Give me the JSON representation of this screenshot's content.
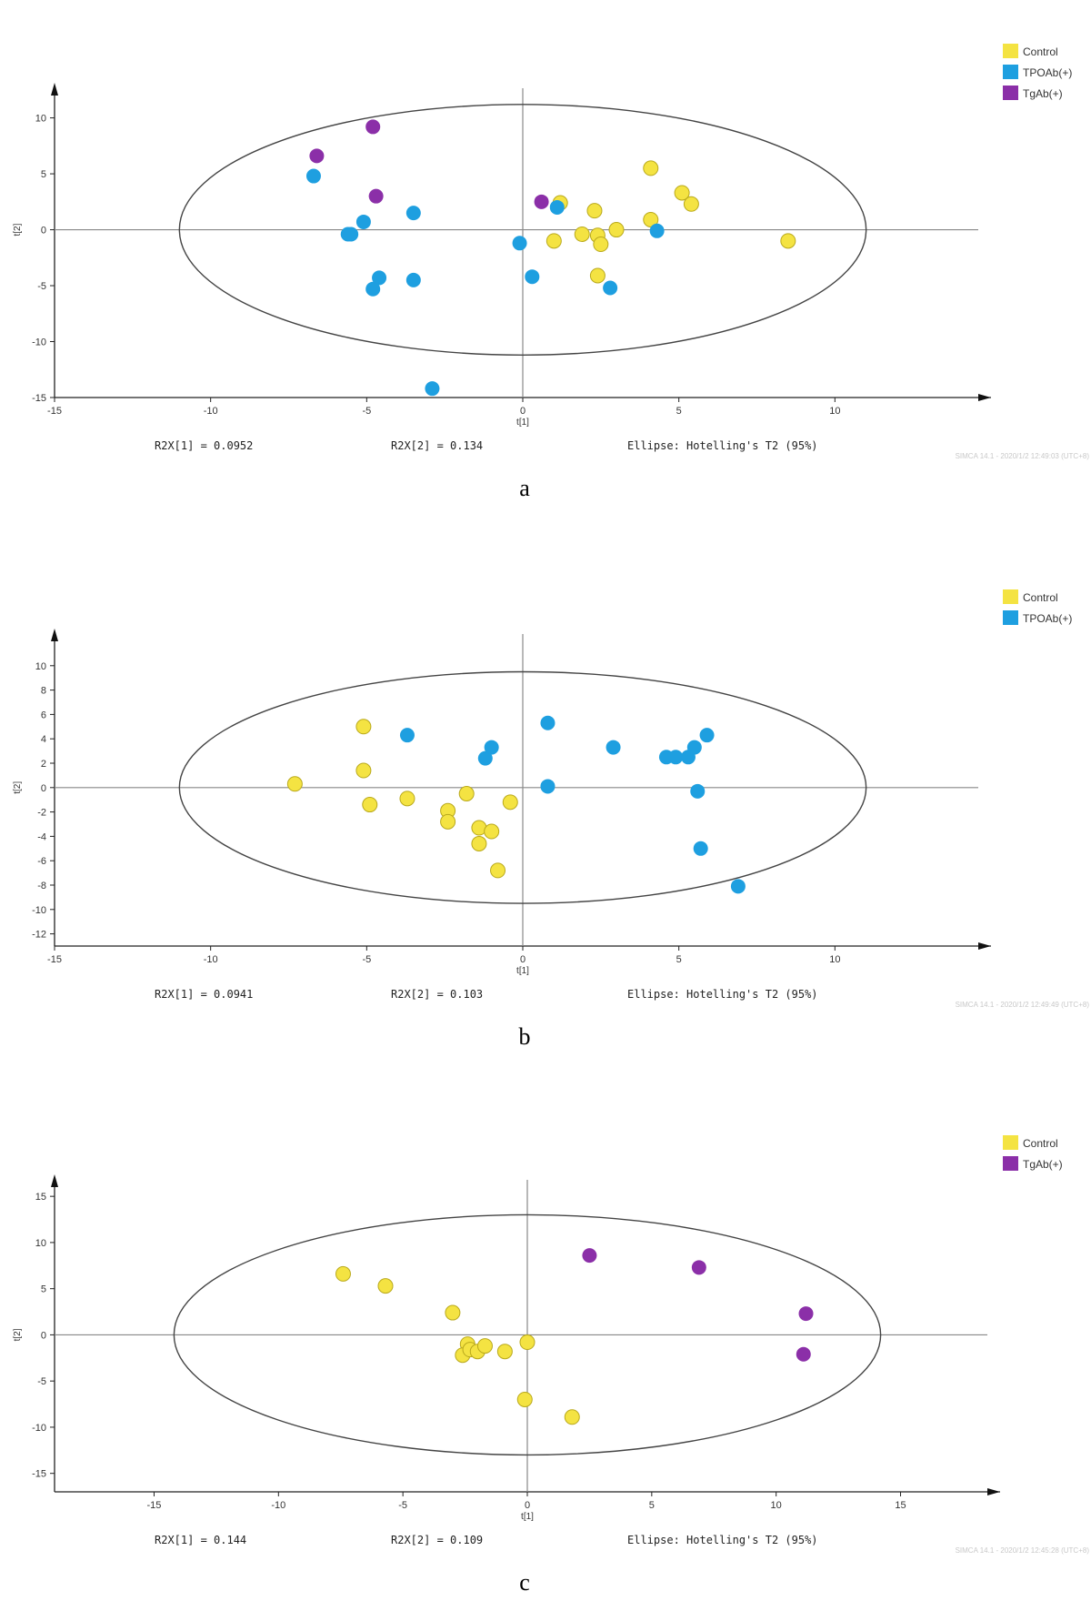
{
  "colors": {
    "Control": "#f4e342",
    "TPOAb(+)": "#1e9fe0",
    "TgAb(+)": "#8b2fa8"
  },
  "chart_data": [
    {
      "type": "scatter",
      "panel_label": "a",
      "xlabel": "t[1]",
      "ylabel": "t[2]",
      "xlim": [
        -15,
        15
      ],
      "ylim": [
        -15,
        12
      ],
      "xticks": [
        -15,
        -10,
        -5,
        0,
        5,
        10
      ],
      "yticks": [
        -15,
        -10,
        -5,
        0,
        5,
        10
      ],
      "grid": false,
      "legend_position": "top-right",
      "ellipse": {
        "rx": 11,
        "ry": 11.2
      },
      "stats": [
        "R2X[1] = 0.0952",
        "R2X[2] = 0.134",
        "Ellipse: Hotelling's T2 (95%)"
      ],
      "watermark": "SIMCA 14.1 - 2020/1/2 12:49:03 (UTC+8)",
      "series": [
        {
          "name": "Control",
          "points": [
            [
              1.2,
              2.4
            ],
            [
              2.3,
              1.7
            ],
            [
              4.1,
              5.5
            ],
            [
              5.1,
              3.3
            ],
            [
              5.4,
              2.3
            ],
            [
              4.1,
              0.9
            ],
            [
              1.0,
              -1.0
            ],
            [
              1.9,
              -0.4
            ],
            [
              2.4,
              -0.5
            ],
            [
              2.5,
              -1.3
            ],
            [
              3.0,
              0.0
            ],
            [
              2.4,
              -4.1
            ],
            [
              8.5,
              -1.0
            ]
          ]
        },
        {
          "name": "TPOAb(+)",
          "points": [
            [
              -6.7,
              4.8
            ],
            [
              -5.6,
              -0.4
            ],
            [
              -5.5,
              -0.4
            ],
            [
              -5.1,
              0.7
            ],
            [
              -3.5,
              1.5
            ],
            [
              -4.6,
              -4.3
            ],
            [
              -4.8,
              -5.3
            ],
            [
              -3.5,
              -4.5
            ],
            [
              -0.1,
              -1.2
            ],
            [
              0.3,
              -4.2
            ],
            [
              1.1,
              2.0
            ],
            [
              4.3,
              -0.1
            ],
            [
              2.8,
              -5.2
            ],
            [
              -2.9,
              -14.2
            ]
          ]
        },
        {
          "name": "TgAb(+)",
          "points": [
            [
              -6.6,
              6.6
            ],
            [
              -4.8,
              9.2
            ],
            [
              -4.7,
              3.0
            ],
            [
              0.6,
              2.5
            ]
          ]
        }
      ]
    },
    {
      "type": "scatter",
      "panel_label": "b",
      "xlabel": "t[1]",
      "ylabel": "t[2]",
      "xlim": [
        -15,
        15
      ],
      "ylim": [
        -13,
        12
      ],
      "xticks": [
        -15,
        -10,
        -5,
        0,
        5,
        10
      ],
      "yticks": [
        -12,
        -10,
        -8,
        -6,
        -4,
        -2,
        0,
        2,
        4,
        6,
        8,
        10
      ],
      "grid": false,
      "legend_position": "top-right",
      "ellipse": {
        "rx": 11,
        "ry": 9.5
      },
      "stats": [
        "R2X[1] = 0.0941",
        "R2X[2] = 0.103",
        "Ellipse: Hotelling's T2 (95%)"
      ],
      "watermark": "SIMCA 14.1 - 2020/1/2 12:49:49 (UTC+8)",
      "series": [
        {
          "name": "Control",
          "points": [
            [
              -7.3,
              0.3
            ],
            [
              -5.1,
              5.0
            ],
            [
              -5.1,
              1.4
            ],
            [
              -4.9,
              -1.4
            ],
            [
              -3.7,
              -0.9
            ],
            [
              -2.4,
              -1.9
            ],
            [
              -2.4,
              -2.8
            ],
            [
              -1.8,
              -0.5
            ],
            [
              -1.4,
              -3.3
            ],
            [
              -1.4,
              -4.6
            ],
            [
              -1.0,
              -3.6
            ],
            [
              -0.8,
              -6.8
            ],
            [
              -0.4,
              -1.2
            ]
          ]
        },
        {
          "name": "TPOAb(+)",
          "points": [
            [
              -3.7,
              4.3
            ],
            [
              -1.2,
              2.4
            ],
            [
              -1.0,
              3.3
            ],
            [
              0.8,
              5.3
            ],
            [
              0.8,
              0.1
            ],
            [
              2.9,
              3.3
            ],
            [
              4.6,
              2.5
            ],
            [
              4.9,
              2.5
            ],
            [
              5.3,
              2.5
            ],
            [
              5.5,
              3.3
            ],
            [
              5.9,
              4.3
            ],
            [
              5.6,
              -0.3
            ],
            [
              5.7,
              -5.0
            ],
            [
              6.9,
              -8.1
            ]
          ]
        }
      ]
    },
    {
      "type": "scatter",
      "panel_label": "c",
      "xlabel": "t[1]",
      "ylabel": "t[2]",
      "xlim": [
        -19,
        19
      ],
      "ylim": [
        -17,
        16
      ],
      "xticks": [
        -15,
        -10,
        -5,
        0,
        5,
        10,
        15
      ],
      "yticks": [
        -15,
        -10,
        -5,
        0,
        5,
        10,
        15
      ],
      "grid": false,
      "legend_position": "top-right",
      "ellipse": {
        "rx": 14.2,
        "ry": 13
      },
      "stats": [
        "R2X[1] = 0.144",
        "R2X[2] = 0.109",
        "Ellipse: Hotelling's T2 (95%)"
      ],
      "watermark": "SIMCA 14.1 - 2020/1/2 12:45:28 (UTC+8)",
      "series": [
        {
          "name": "Control",
          "points": [
            [
              -7.4,
              6.6
            ],
            [
              -5.7,
              5.3
            ],
            [
              -3.0,
              2.4
            ],
            [
              -2.4,
              -1.0
            ],
            [
              -2.6,
              -2.2
            ],
            [
              -2.3,
              -1.6
            ],
            [
              -2.0,
              -1.8
            ],
            [
              -1.7,
              -1.2
            ],
            [
              -0.9,
              -1.8
            ],
            [
              0.0,
              -0.8
            ],
            [
              -0.1,
              -7.0
            ],
            [
              1.8,
              -8.9
            ]
          ]
        },
        {
          "name": "TgAb(+)",
          "points": [
            [
              2.5,
              8.6
            ],
            [
              6.9,
              7.3
            ],
            [
              11.2,
              2.3
            ],
            [
              11.1,
              -2.1
            ]
          ]
        }
      ]
    }
  ]
}
